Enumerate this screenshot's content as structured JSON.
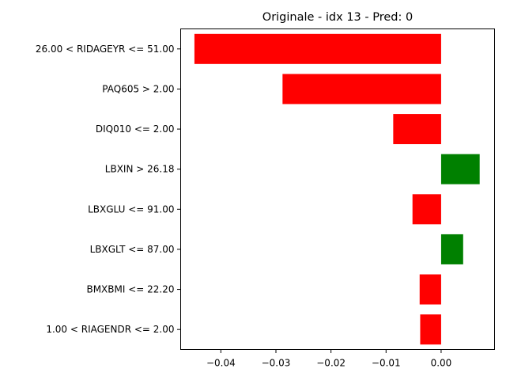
{
  "chart_data": {
    "type": "bar",
    "orientation": "horizontal",
    "title": "Originale - idx 13 - Pred: 0",
    "xlabel": "",
    "ylabel": "",
    "categories": [
      "26.00 < RIDAGEYR <= 51.00",
      "PAQ605 > 2.00",
      "DIQ010 <= 2.00",
      "LBXIN > 26.18",
      "LBXGLU <= 91.00",
      "LBXGLT <= 87.00",
      "BMXBMI <= 22.20",
      "1.00 < RIAGENDR <= 2.00"
    ],
    "values": [
      -0.0448,
      -0.0288,
      -0.0087,
      0.007,
      -0.0052,
      0.004,
      -0.0039,
      -0.0038
    ],
    "xlim": [
      -0.0473,
      0.0097
    ],
    "xticks": [
      {
        "value": -0.04,
        "label": "−0.04"
      },
      {
        "value": -0.03,
        "label": "−0.03"
      },
      {
        "value": -0.02,
        "label": "−0.02"
      },
      {
        "value": -0.01,
        "label": "−0.01"
      },
      {
        "value": 0.0,
        "label": "0.00"
      }
    ],
    "grid": false,
    "colors": {
      "positive": "#008000",
      "negative": "#ff0000",
      "axis": "#000000"
    }
  }
}
